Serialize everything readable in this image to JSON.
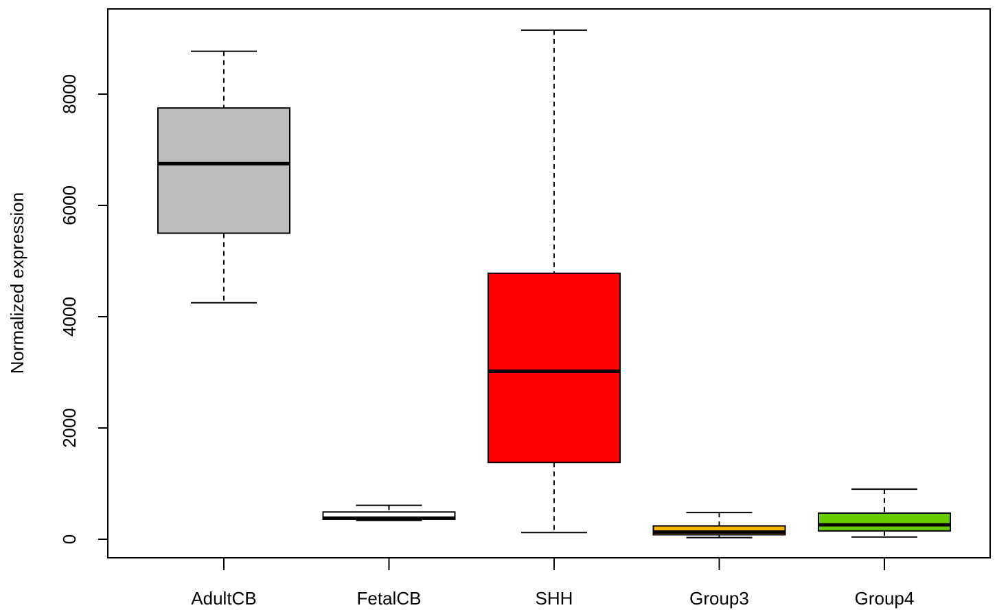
{
  "chart_data": {
    "type": "boxplot",
    "title": "",
    "xlabel": "",
    "ylabel": "Normalized expression",
    "ylim": [
      0,
      9000
    ],
    "yticks": [
      0,
      2000,
      4000,
      6000,
      8000
    ],
    "grid": false,
    "categories": [
      "AdultCB",
      "FetalCB",
      "SHH",
      "Group3",
      "Group4"
    ],
    "boxes": [
      {
        "name": "AdultCB",
        "whisker_low": 4250,
        "q1": 5500,
        "median": 6750,
        "q3": 7750,
        "whisker_high": 8770,
        "color": "#bebebe"
      },
      {
        "name": "FetalCB",
        "whisker_low": 340,
        "q1": 360,
        "median": 380,
        "q3": 490,
        "whisker_high": 610,
        "color": "#ffffff"
      },
      {
        "name": "SHH",
        "whisker_low": 120,
        "q1": 1380,
        "median": 3020,
        "q3": 4780,
        "whisker_high": 9150,
        "color": "#ff0000"
      },
      {
        "name": "Group3",
        "whisker_low": 30,
        "q1": 80,
        "median": 130,
        "q3": 240,
        "whisker_high": 480,
        "color": "#f5b400"
      },
      {
        "name": "Group4",
        "whisker_low": 40,
        "q1": 150,
        "median": 260,
        "q3": 470,
        "whisker_high": 900,
        "color": "#66cc00"
      }
    ]
  }
}
